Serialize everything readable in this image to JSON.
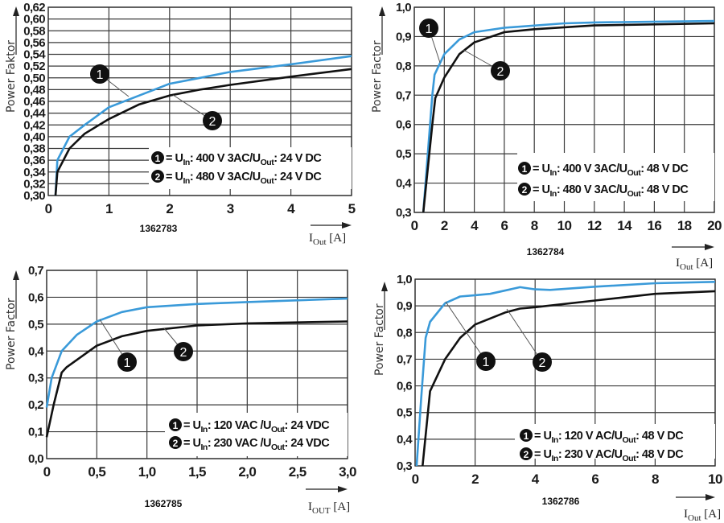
{
  "chart_data": [
    {
      "type": "line",
      "id_label": "1362783",
      "ylabel": "Power Faktor",
      "xlabel": {
        "main": "I",
        "sub": "Out",
        "unit": " [A]"
      },
      "xlim": [
        0,
        5
      ],
      "ylim": [
        0.3,
        0.62
      ],
      "xticks": [
        0,
        1,
        2,
        3,
        4,
        5
      ],
      "xtick_labels": [
        "0",
        "1",
        "2",
        "3",
        "4",
        "5"
      ],
      "yticks": [
        0.3,
        0.32,
        0.34,
        0.36,
        0.38,
        0.4,
        0.42,
        0.44,
        0.46,
        0.48,
        0.5,
        0.52,
        0.54,
        0.56,
        0.58,
        0.6,
        0.62
      ],
      "ytick_labels": [
        "0,30",
        "0,32",
        "0,34",
        "0,36",
        "0,38",
        "0,40",
        "0,42",
        "0,44",
        "0,46",
        "0,48",
        "0,50",
        "0,52",
        "0,54",
        "0,56",
        "0,58",
        "0,60",
        "0,62"
      ],
      "grid": true,
      "legend": [
        [
          {
            "t": "= U"
          },
          {
            "t": "In",
            "sub": true
          },
          {
            "t": ": 400 V 3AC/U"
          },
          {
            "t": "Out",
            "sub": true
          },
          {
            "t": ": 24 V DC"
          }
        ],
        [
          {
            "t": "= U"
          },
          {
            "t": "In",
            "sub": true
          },
          {
            "t": ": 480 V 3AC/U"
          },
          {
            "t": "Out",
            "sub": true
          },
          {
            "t": ": 24 V DC"
          }
        ]
      ],
      "series": [
        {
          "name": "1",
          "color": "#3a9ad9",
          "x": [
            0.12,
            0.15,
            0.35,
            0.6,
            1,
            1.5,
            2,
            2.5,
            3,
            4,
            5
          ],
          "y": [
            0.3,
            0.36,
            0.4,
            0.42,
            0.45,
            0.47,
            0.49,
            0.5,
            0.51,
            0.523,
            0.537
          ]
        },
        {
          "name": "2",
          "color": "#111111",
          "x": [
            0.12,
            0.15,
            0.35,
            0.6,
            1,
            1.5,
            2,
            2.5,
            3,
            4,
            5
          ],
          "y": [
            0.3,
            0.34,
            0.38,
            0.405,
            0.43,
            0.455,
            0.47,
            0.48,
            0.488,
            0.502,
            0.515
          ]
        }
      ]
    },
    {
      "type": "line",
      "id_label": "1362784",
      "ylabel": "Power Factor",
      "xlabel": {
        "main": "I",
        "sub": "Out",
        "unit": " [A]"
      },
      "xlim": [
        0,
        20
      ],
      "ylim": [
        0.3,
        1.0
      ],
      "xticks": [
        0,
        2,
        4,
        6,
        8,
        10,
        12,
        14,
        16,
        18,
        20
      ],
      "xtick_labels": [
        "0",
        "2",
        "4",
        "6",
        "8",
        "10",
        "12",
        "14",
        "16",
        "18",
        "20"
      ],
      "yticks": [
        0.3,
        0.4,
        0.5,
        0.6,
        0.7,
        0.8,
        0.9,
        1.0
      ],
      "ytick_labels": [
        "0,3",
        "0,4",
        "0,5",
        "0,6",
        "0,7",
        "0,8",
        "0,9",
        "1,0"
      ],
      "grid": true,
      "legend": [
        [
          {
            "t": "= U"
          },
          {
            "t": "In",
            "sub": true
          },
          {
            "t": ": 400 V 3AC/U"
          },
          {
            "t": "Out",
            "sub": true
          },
          {
            "t": ": 48 V DC"
          }
        ],
        [
          {
            "t": "= U"
          },
          {
            "t": "In",
            "sub": true
          },
          {
            "t": ": 480 V 3AC/U"
          },
          {
            "t": "Out",
            "sub": true
          },
          {
            "t": ": 48 V DC"
          }
        ]
      ],
      "series": [
        {
          "name": "1",
          "color": "#3a9ad9",
          "x": [
            0.6,
            1.2,
            1.35,
            2,
            3,
            4,
            6,
            10,
            12,
            20
          ],
          "y": [
            0.3,
            0.7,
            0.77,
            0.84,
            0.89,
            0.915,
            0.93,
            0.945,
            0.948,
            0.953
          ]
        },
        {
          "name": "2",
          "color": "#111111",
          "x": [
            0.6,
            1.2,
            1.4,
            2,
            3,
            4,
            6,
            8,
            12,
            20
          ],
          "y": [
            0.3,
            0.6,
            0.69,
            0.76,
            0.84,
            0.88,
            0.915,
            0.925,
            0.938,
            0.945
          ]
        }
      ]
    },
    {
      "type": "line",
      "id_label": "1362785",
      "ylabel": "Power Factor",
      "xlabel": {
        "main": "I",
        "sub": "OUT",
        "unit": " [A]"
      },
      "xlim": [
        0,
        3.0
      ],
      "ylim": [
        0.0,
        0.7
      ],
      "xticks": [
        0,
        0.5,
        1.0,
        1.5,
        2.0,
        2.5,
        3.0
      ],
      "xtick_labels": [
        "0",
        "0,5",
        "1,0",
        "1,5",
        "2,0",
        "2,5",
        "3,0"
      ],
      "yticks": [
        0.0,
        0.1,
        0.2,
        0.3,
        0.4,
        0.5,
        0.6,
        0.7
      ],
      "ytick_labels": [
        "0,0",
        "0,1",
        "0,2",
        "0,3",
        "0,4",
        "0,5",
        "0,6",
        "0,7"
      ],
      "grid": true,
      "legend": [
        [
          {
            "t": "= U"
          },
          {
            "t": "In",
            "sub": true
          },
          {
            "t": ": 120 VAC /U"
          },
          {
            "t": "Out",
            "sub": true
          },
          {
            "t": ": 24 VDC"
          }
        ],
        [
          {
            "t": "= U"
          },
          {
            "t": "In",
            "sub": true
          },
          {
            "t": ": 230 VAC /U"
          },
          {
            "t": "Out",
            "sub": true
          },
          {
            "t": ": 24 VDC"
          }
        ]
      ],
      "series": [
        {
          "name": "1",
          "color": "#3a9ad9",
          "x": [
            0,
            0.05,
            0.15,
            0.3,
            0.5,
            0.75,
            1,
            1.5,
            2,
            3
          ],
          "y": [
            0.19,
            0.3,
            0.4,
            0.46,
            0.51,
            0.545,
            0.563,
            0.575,
            0.582,
            0.595
          ]
        },
        {
          "name": "2",
          "color": "#111111",
          "x": [
            0,
            0.07,
            0.15,
            0.2,
            0.5,
            0.75,
            1,
            1.5,
            2,
            3
          ],
          "y": [
            0.08,
            0.2,
            0.32,
            0.34,
            0.42,
            0.455,
            0.475,
            0.495,
            0.503,
            0.51
          ]
        }
      ]
    },
    {
      "type": "line",
      "id_label": "1362786",
      "ylabel": "Power Factor",
      "xlabel": {
        "main": "I",
        "sub": "Out",
        "unit": " [A]"
      },
      "xlim": [
        0,
        10
      ],
      "ylim": [
        0.3,
        1.0
      ],
      "xticks": [
        0,
        2,
        4,
        6,
        8,
        10
      ],
      "xtick_labels": [
        "0",
        "2",
        "4",
        "6",
        "8",
        "10"
      ],
      "yticks": [
        0.3,
        0.4,
        0.5,
        0.6,
        0.7,
        0.8,
        0.9,
        1.0
      ],
      "ytick_labels": [
        "0,3",
        "0,4",
        "0,5",
        "0,6",
        "0,7",
        "0,8",
        "0,9",
        "1,0"
      ],
      "grid": true,
      "legend": [
        [
          {
            "t": "= U"
          },
          {
            "t": "In",
            "sub": true
          },
          {
            "t": ": 120 V AC/U"
          },
          {
            "t": "Out",
            "sub": true
          },
          {
            "t": ": 48 V DC"
          }
        ],
        [
          {
            "t": "= U"
          },
          {
            "t": "In",
            "sub": true
          },
          {
            "t": ": 230 V AC/U"
          },
          {
            "t": "Out",
            "sub": true
          },
          {
            "t": ": 48 V DC"
          }
        ]
      ],
      "series": [
        {
          "name": "1",
          "color": "#3a9ad9",
          "x": [
            0.05,
            0.2,
            0.35,
            0.5,
            1,
            1.5,
            2,
            2.5,
            3.5,
            4,
            4.5,
            6,
            8,
            10
          ],
          "y": [
            0.3,
            0.55,
            0.78,
            0.84,
            0.91,
            0.935,
            0.94,
            0.945,
            0.97,
            0.962,
            0.96,
            0.972,
            0.985,
            0.99
          ]
        },
        {
          "name": "2",
          "color": "#111111",
          "x": [
            0.25,
            0.5,
            1,
            1.5,
            2,
            3,
            3.5,
            4,
            6,
            8,
            10
          ],
          "y": [
            0.3,
            0.58,
            0.7,
            0.78,
            0.83,
            0.875,
            0.89,
            0.895,
            0.92,
            0.945,
            0.955
          ]
        }
      ]
    }
  ]
}
